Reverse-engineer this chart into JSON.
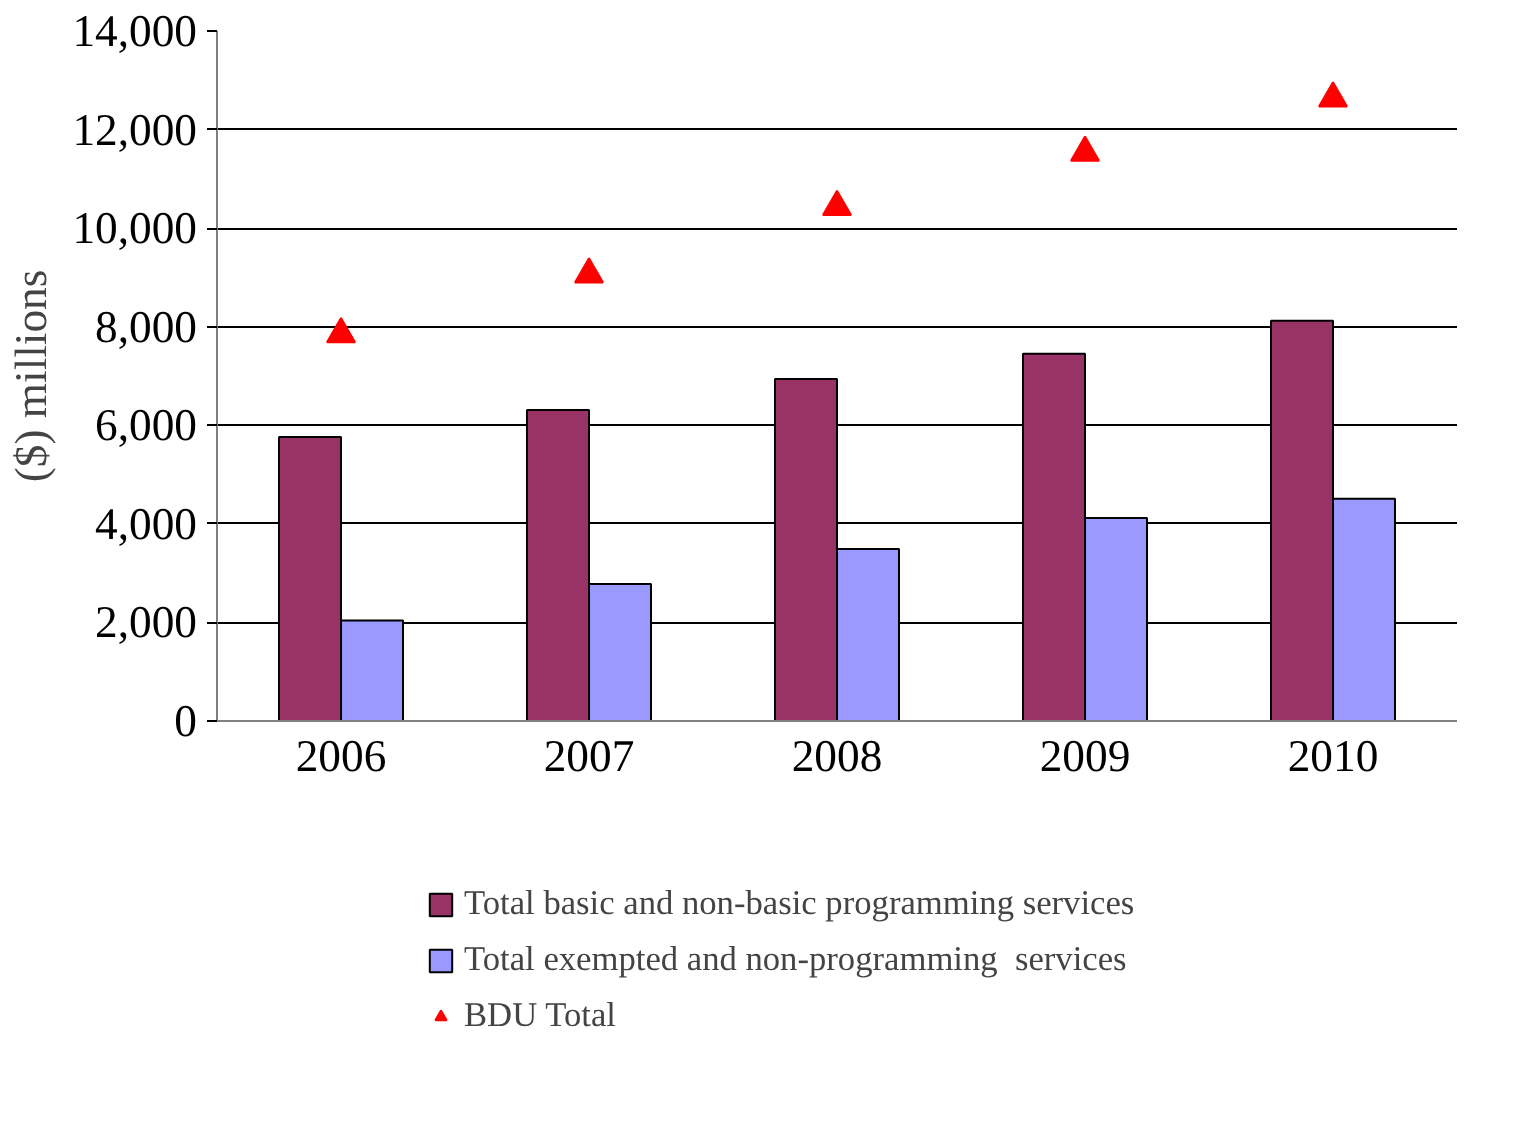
{
  "chart_data": {
    "type": "bar",
    "ylabel": "($) millions",
    "categories": [
      "2006",
      "2007",
      "2008",
      "2009",
      "2010"
    ],
    "series": [
      {
        "name": "Total basic and non-basic programming services",
        "color": "#993366",
        "values": [
          5760,
          6310,
          6940,
          7450,
          8120
        ]
      },
      {
        "name": "Total exempted and non-programming  services",
        "color": "#9999ff",
        "values": [
          2040,
          2780,
          3490,
          4120,
          4510
        ]
      },
      {
        "name": "BDU Total",
        "type": "scatter",
        "marker": "triangle",
        "color": "#ff0000",
        "values": [
          7850,
          9060,
          10430,
          11530,
          12630
        ]
      }
    ],
    "ylim": [
      0,
      14000
    ],
    "yticks": [
      {
        "value": 0,
        "label": "0"
      },
      {
        "value": 2000,
        "label": "2,000"
      },
      {
        "value": 4000,
        "label": "4,000"
      },
      {
        "value": 6000,
        "label": "6,000"
      },
      {
        "value": 8000,
        "label": "8,000"
      },
      {
        "value": 10000,
        "label": "10,000"
      },
      {
        "value": 12000,
        "label": "12,000"
      },
      {
        "value": 14000,
        "label": "14,000"
      }
    ],
    "grid": "y",
    "legend": "bottom"
  }
}
